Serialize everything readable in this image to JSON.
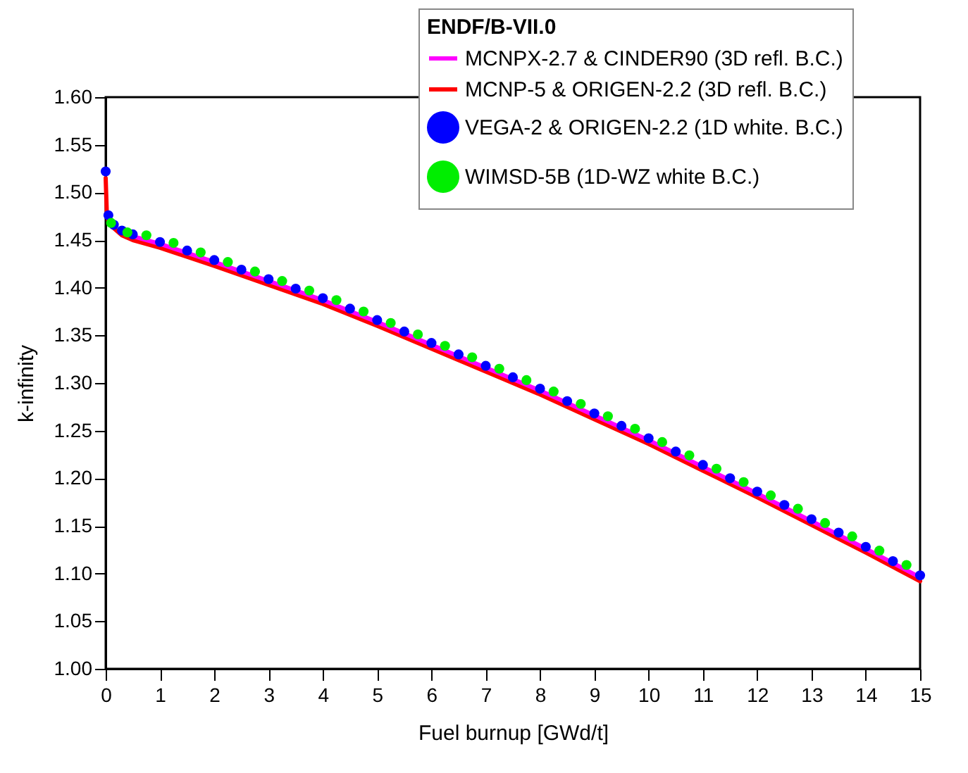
{
  "chart_data": {
    "type": "line",
    "xlabel": "Fuel burnup [GWd/t]",
    "ylabel": "k-infinity",
    "legend_title": "ENDF/B-VII.0",
    "legend": "top right",
    "grid": false,
    "xlim": [
      0,
      15
    ],
    "xticks": [
      0,
      1,
      2,
      3,
      4,
      5,
      6,
      7,
      8,
      9,
      10,
      11,
      12,
      13,
      14,
      15
    ],
    "ylim": [
      1.0,
      1.6
    ],
    "yticks": [
      {
        "value": 1.0,
        "label": "1.00"
      },
      1.05,
      {
        "value": 1.1,
        "label": "1.10"
      },
      1.15,
      {
        "value": 1.2,
        "label": "1.20"
      },
      1.25,
      {
        "value": 1.3,
        "label": "1.30"
      },
      1.35,
      {
        "value": 1.4,
        "label": "1.40"
      },
      1.45,
      {
        "value": 1.5,
        "label": "1.50"
      },
      1.55,
      {
        "value": 1.6,
        "label": "1.60"
      }
    ],
    "series": [
      {
        "name": "MCNPX-2.7 & CINDER90 (3D refl. B.C.)",
        "color": "#ff00ff",
        "marker": "none",
        "x": [
          0.3,
          0.5,
          1,
          2,
          3,
          4,
          5,
          6,
          7,
          8,
          9,
          10,
          11,
          12,
          13,
          14,
          15
        ],
        "values": [
          1.459,
          1.454,
          1.446,
          1.427,
          1.407,
          1.387,
          1.364,
          1.34,
          1.316,
          1.292,
          1.266,
          1.24,
          1.212,
          1.184,
          1.155,
          1.126,
          1.096
        ]
      },
      {
        "name": "MCNP-5 & ORIGEN-2.2 (3D refl. B.C.)",
        "color": "#ff0000",
        "marker": "none",
        "x": [
          0,
          0.02,
          0.05,
          0.1,
          0.2,
          0.3,
          0.5,
          1,
          2,
          3,
          4,
          5,
          6,
          7,
          8,
          9,
          10,
          11,
          12,
          13,
          14,
          15
        ],
        "values": [
          1.515,
          1.48,
          1.47,
          1.465,
          1.46,
          1.455,
          1.45,
          1.442,
          1.423,
          1.403,
          1.383,
          1.36,
          1.336,
          1.312,
          1.288,
          1.262,
          1.236,
          1.208,
          1.18,
          1.151,
          1.122,
          1.092
        ]
      },
      {
        "name": "VEGA-2 & ORIGEN-2.2 (1D white. B.C.)",
        "color": "#0000ff",
        "type": "scatter",
        "marker": "circle",
        "x": [
          0,
          0.05,
          0.15,
          0.3,
          0.5,
          1,
          1.5,
          2,
          2.5,
          3,
          3.5,
          4,
          4.5,
          5,
          5.5,
          6,
          6.5,
          7,
          7.5,
          8,
          8.5,
          9,
          9.5,
          10,
          10.5,
          11,
          11.5,
          12,
          12.5,
          13,
          13.5,
          14,
          14.5,
          15
        ],
        "values": [
          1.522,
          1.476,
          1.466,
          1.46,
          1.456,
          1.448,
          1.439,
          1.429,
          1.419,
          1.409,
          1.399,
          1.389,
          1.378,
          1.366,
          1.354,
          1.342,
          1.33,
          1.318,
          1.306,
          1.294,
          1.281,
          1.268,
          1.255,
          1.242,
          1.228,
          1.214,
          1.2,
          1.186,
          1.172,
          1.157,
          1.143,
          1.128,
          1.113,
          1.098
        ]
      },
      {
        "name": "WIMSD-5B (1D-WZ white B.C.)",
        "color": "#00ee00",
        "type": "scatter",
        "marker": "circle",
        "x": [
          0.1,
          0.4,
          0.75,
          1.25,
          1.75,
          2.25,
          2.75,
          3.25,
          3.75,
          4.25,
          4.75,
          5.25,
          5.75,
          6.25,
          6.75,
          7.25,
          7.75,
          8.25,
          8.75,
          9.25,
          9.75,
          10.25,
          10.75,
          11.25,
          11.75,
          12.25,
          12.75,
          13.25,
          13.75,
          14.25,
          14.75
        ],
        "values": [
          1.468,
          1.458,
          1.455,
          1.447,
          1.437,
          1.427,
          1.417,
          1.407,
          1.397,
          1.387,
          1.375,
          1.363,
          1.351,
          1.339,
          1.327,
          1.315,
          1.303,
          1.291,
          1.278,
          1.265,
          1.252,
          1.238,
          1.224,
          1.21,
          1.196,
          1.182,
          1.168,
          1.153,
          1.139,
          1.124,
          1.109
        ]
      }
    ]
  }
}
